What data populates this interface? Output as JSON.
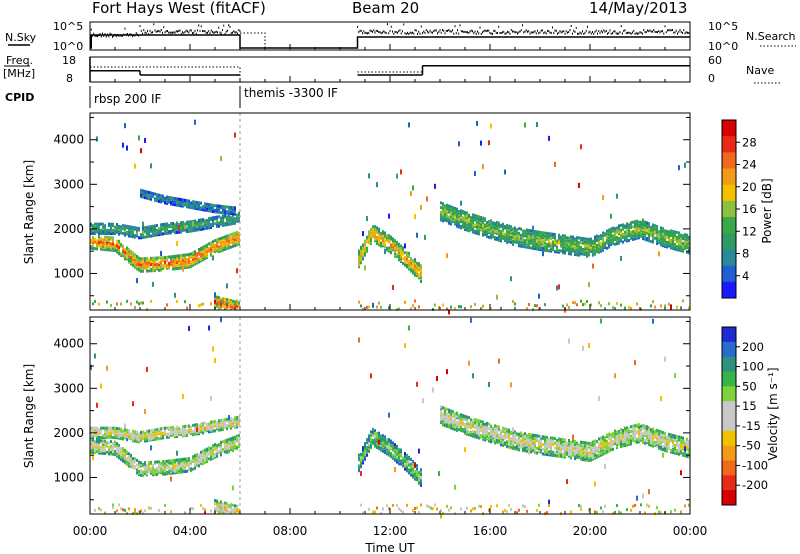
{
  "header": {
    "station": "Fort Hays West (fitACF)",
    "beam": "Beam 20",
    "date": "14/May/2013"
  },
  "top_panels": {
    "nsky_label": "N.Sky",
    "nsky_ticks": [
      "10^5",
      "10^0"
    ],
    "nsearch_label": "N.Search",
    "nsearch_ticks": [
      "10^5",
      "10^0"
    ],
    "freq_label": "Freq.",
    "freq_unit": "[MHz]",
    "freq_ticks": [
      "18",
      "8"
    ],
    "nave_label": "Nave",
    "nave_ticks": [
      "60",
      "0"
    ],
    "cpid_label": "CPID",
    "cpid_segments": [
      {
        "label": "rbsp 200 IF",
        "start_h": 0,
        "end_h": 6
      },
      {
        "label": "themis -3300 IF",
        "start_h": 6,
        "end_h": 24
      }
    ],
    "freq_series": [
      {
        "start_h": 0,
        "end_h": 2,
        "value": 12.2
      },
      {
        "start_h": 2,
        "end_h": 6,
        "value": 10.3
      },
      {
        "start_h": 10.7,
        "end_h": 13.3,
        "value": 10.3
      },
      {
        "start_h": 13.3,
        "end_h": 24,
        "value": 14.5
      }
    ]
  },
  "chart_data": [
    {
      "type": "heatmap",
      "name": "power",
      "ylabel": "Slant Range [km]",
      "xlabel": "",
      "ylim": [
        180,
        4600
      ],
      "y_ticks": [
        1000,
        2000,
        3000,
        4000
      ],
      "colorbar_label": "Power [dB]",
      "colorbar_ticks": [
        "4",
        "8",
        "12",
        "16",
        "20",
        "24",
        "28"
      ],
      "colorbar_colors": [
        "#1a1aff",
        "#1f5fd0",
        "#2a8a9a",
        "#2f9a62",
        "#3aa84a",
        "#8cc040",
        "#f2c200",
        "#f39a1a",
        "#ee6a1a",
        "#e82a18",
        "#d80000"
      ],
      "gaps_h": [
        [
          6.0,
          10.7
        ]
      ],
      "bands": [
        {
          "x": [
            0,
            1,
            2,
            3,
            4,
            5,
            6
          ],
          "y": [
            1750,
            1700,
            1230,
            1260,
            1330,
            1640,
            1850
          ],
          "width": 300,
          "level": 0.72
        },
        {
          "x": [
            0,
            1,
            2,
            3,
            4,
            5,
            6
          ],
          "y": [
            2050,
            2050,
            1950,
            2050,
            2100,
            2200,
            2300
          ],
          "width": 240,
          "level": 0.35
        },
        {
          "x": [
            2,
            3,
            4,
            5,
            5.8
          ],
          "y": [
            2850,
            2700,
            2600,
            2500,
            2450
          ],
          "width": 170,
          "level": 0.25
        },
        {
          "x": [
            5,
            5.5,
            6
          ],
          "y": [
            400,
            330,
            250
          ],
          "width": 260,
          "level": 0.8
        },
        {
          "x": [
            10.7,
            11.3,
            12,
            12.7,
            13.3
          ],
          "y": [
            1300,
            1950,
            1700,
            1350,
            1000
          ],
          "width": 360,
          "level": 0.65
        },
        {
          "x": [
            14,
            15,
            16,
            17,
            18,
            19,
            20,
            21,
            22,
            23,
            24
          ],
          "y": [
            2450,
            2230,
            2050,
            1880,
            1780,
            1700,
            1620,
            1900,
            2050,
            1850,
            1700
          ],
          "width": 420,
          "level": 0.45
        }
      ]
    },
    {
      "type": "heatmap",
      "name": "velocity",
      "ylabel": "Slant Range [km]",
      "xlabel": "Time UT",
      "ylim": [
        180,
        4600
      ],
      "y_ticks": [
        1000,
        2000,
        3000,
        4000
      ],
      "x_ticks": [
        "00:00",
        "04:00",
        "08:00",
        "12:00",
        "16:00",
        "20:00",
        "00:00"
      ],
      "x_tick_hours": [
        0,
        4,
        8,
        12,
        16,
        20,
        24
      ],
      "colorbar_label": "Velocity [m s⁻¹]",
      "colorbar_ticks": [
        "200",
        "100",
        "50",
        "15",
        "-15",
        "-50",
        "-100",
        "-200"
      ],
      "colorbar_colors": [
        "#1f2bd0",
        "#2a6bcf",
        "#2e9080",
        "#38b34a",
        "#7fd33a",
        "#c8c8c8",
        "#c8c8c8",
        "#f2c200",
        "#f39a1a",
        "#ee6a1a",
        "#e82a18",
        "#d80000"
      ],
      "gaps_h": [
        [
          6.0,
          10.7
        ]
      ],
      "bands": [
        {
          "x": [
            0,
            1,
            2,
            3,
            4,
            5,
            6
          ],
          "y": [
            1750,
            1700,
            1230,
            1260,
            1330,
            1640,
            1850
          ],
          "width": 300,
          "level": 0.5
        },
        {
          "x": [
            0,
            1,
            2,
            3,
            4,
            5,
            6
          ],
          "y": [
            2050,
            2050,
            1950,
            2050,
            2100,
            2200,
            2300
          ],
          "width": 240,
          "level": 0.55
        },
        {
          "x": [
            5,
            5.5,
            6
          ],
          "y": [
            400,
            330,
            250
          ],
          "width": 260,
          "level": 0.6
        },
        {
          "x": [
            10.7,
            11.3,
            12,
            12.7,
            13.3
          ],
          "y": [
            1300,
            1950,
            1700,
            1350,
            1000
          ],
          "width": 360,
          "level": 0.35
        },
        {
          "x": [
            14,
            15,
            16,
            17,
            18,
            19,
            20,
            21,
            22,
            23,
            24
          ],
          "y": [
            2450,
            2230,
            2050,
            1880,
            1780,
            1700,
            1620,
            1900,
            2050,
            1850,
            1700
          ],
          "width": 420,
          "level": 0.5
        }
      ]
    }
  ]
}
